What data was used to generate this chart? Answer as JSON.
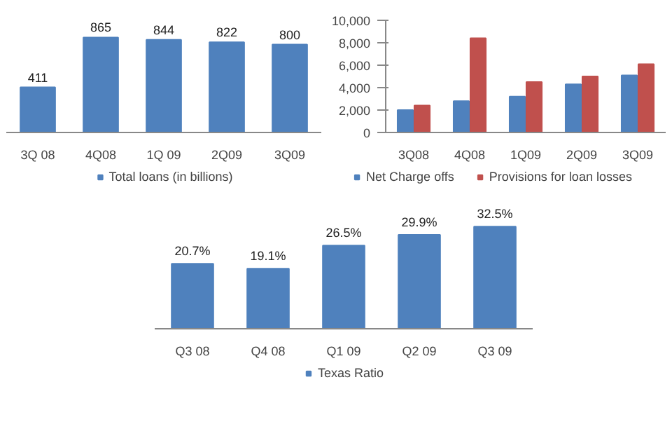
{
  "chart_data": [
    {
      "type": "bar",
      "categories": [
        "3Q 08",
        "4Q08",
        "1Q 09",
        "2Q09",
        "3Q09"
      ],
      "series": [
        {
          "name": "Total loans (in billions)",
          "color": "#4f81bd",
          "values": [
            411,
            865,
            844,
            822,
            800
          ]
        }
      ],
      "data_labels": true,
      "legend": "bottom",
      "tick_labels": "x"
    },
    {
      "type": "bar",
      "categories": [
        "3Q08",
        "4Q08",
        "1Q09",
        "2Q09",
        "3Q09"
      ],
      "series": [
        {
          "name": "Net Charge offs",
          "color": "#4f81bd",
          "values": [
            2000,
            2800,
            3200,
            4300,
            5100
          ]
        },
        {
          "name": "Provisions for loan losses",
          "color": "#c0504d",
          "values": [
            2400,
            8400,
            4500,
            5000,
            6100
          ]
        }
      ],
      "ylim": [
        0,
        10000
      ],
      "yticks": [
        0,
        {
          "value": 2000,
          "label": "2,000"
        },
        {
          "value": 4000,
          "label": "4,000"
        },
        {
          "value": 6000,
          "label": "6,000"
        },
        {
          "value": 8000,
          "label": "8,000"
        },
        {
          "value": 10000,
          "label": "10,000"
        }
      ],
      "legend": "bottom"
    },
    {
      "type": "bar",
      "categories": [
        "Q3 08",
        "Q4 08",
        "Q1 09",
        "Q2 09",
        "Q3 09"
      ],
      "series": [
        {
          "name": "Texas Ratio",
          "color": "#4f81bd",
          "values": [
            20.7,
            19.1,
            26.5,
            29.9,
            32.5
          ],
          "value_labels": [
            "20.7%",
            "19.1%",
            "26.5%",
            "29.9%",
            "32.5%"
          ]
        }
      ],
      "legend": "bottom",
      "tick_labels": "x"
    }
  ]
}
